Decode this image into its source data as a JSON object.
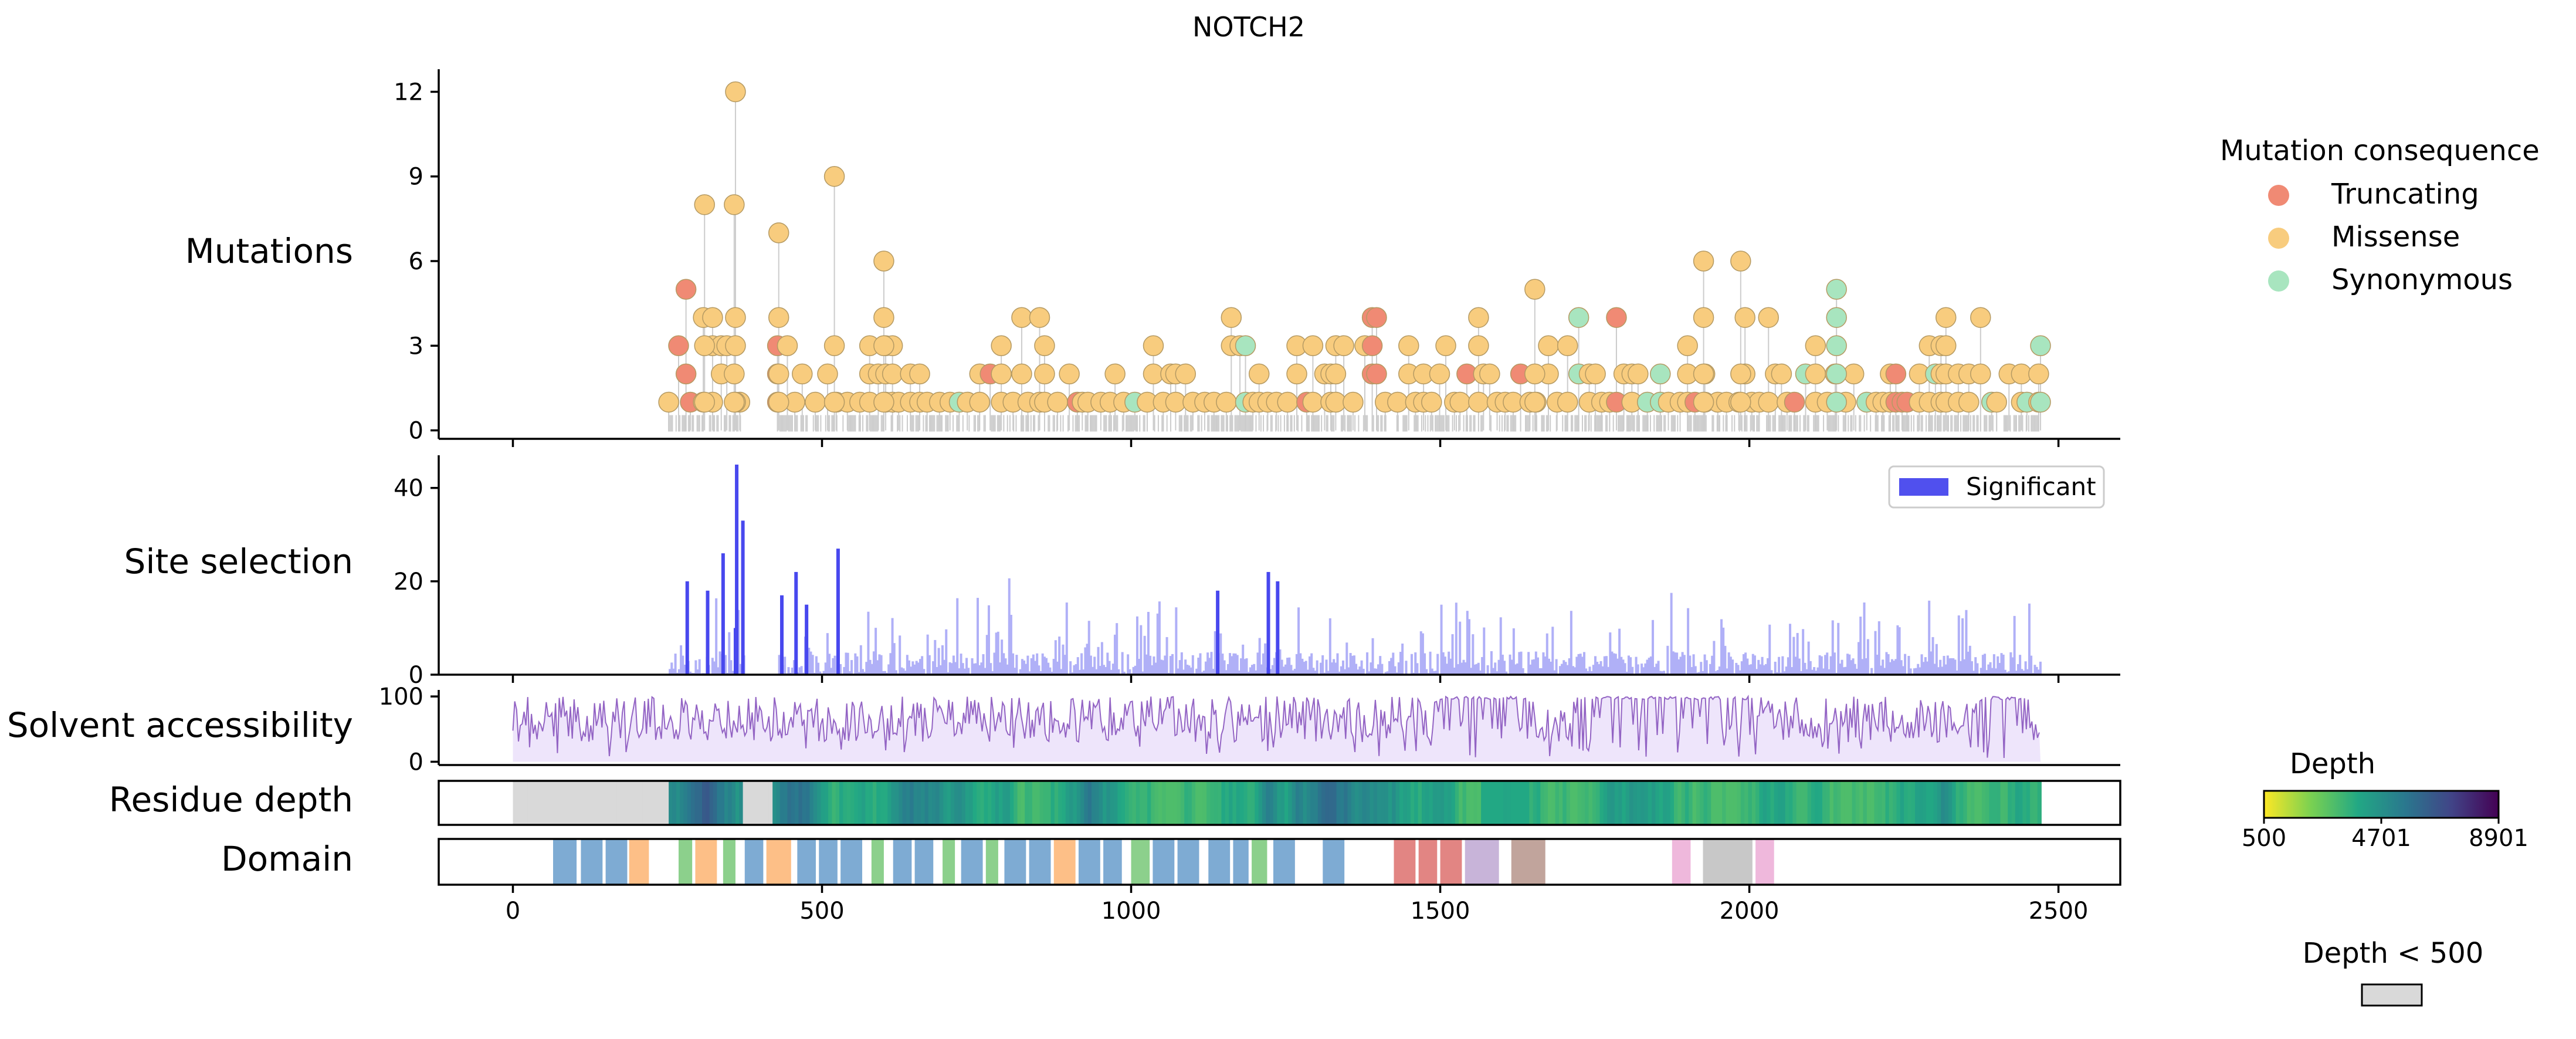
{
  "chart_data": {
    "type": "lollipop",
    "title": "NOTCH2",
    "panels": {
      "mutations": {
        "label": "Mutations",
        "yticks": [
          0,
          3,
          6,
          9,
          12
        ],
        "ylim": [
          -0.3,
          12.8
        ]
      },
      "site_selection": {
        "label": "Site selection",
        "yticks": [
          0,
          20,
          40
        ],
        "ylim": [
          0,
          47
        ]
      },
      "solvent_accessibility": {
        "label": "Solvent accessibility",
        "yticks": [
          0,
          100
        ],
        "ylim": [
          -5,
          110
        ]
      },
      "residue_depth": {
        "label": "Residue depth"
      },
      "domain": {
        "label": "Domain"
      }
    },
    "x_axis": {
      "xlim": [
        -120,
        2600
      ],
      "ticks": [
        0,
        500,
        1000,
        1500,
        2000,
        2500
      ]
    },
    "protein_length": 2471,
    "legend_mutation": {
      "title": "Mutation consequence",
      "entries": [
        {
          "label": "Truncating",
          "color": "#f08a74"
        },
        {
          "label": "Missense",
          "color": "#f8cc7e"
        },
        {
          "label": "Synonymous",
          "color": "#a8e5bf"
        }
      ]
    },
    "legend_selection": {
      "entries": [
        {
          "label": "Significant",
          "color": "#5050ee"
        }
      ]
    },
    "colorbar": {
      "title": "Depth",
      "min": 500,
      "mid": 4701,
      "max": 8901,
      "ticks": [
        "500",
        "4701",
        "8901"
      ]
    },
    "low_depth": {
      "title": "Depth < 500",
      "color": "#d9d9d9"
    },
    "low_depth_regions": [
      [
        0,
        250
      ],
      [
        368,
        420
      ]
    ],
    "notable_mutations": [
      {
        "pos": 280,
        "count": 5,
        "consequence": "Truncating"
      },
      {
        "pos": 360,
        "count": 12,
        "consequence": "Missense"
      },
      {
        "pos": 310,
        "count": 8,
        "consequence": "Missense"
      },
      {
        "pos": 358,
        "count": 8,
        "consequence": "Missense"
      },
      {
        "pos": 430,
        "count": 7,
        "consequence": "Missense"
      },
      {
        "pos": 520,
        "count": 9,
        "consequence": "Missense"
      },
      {
        "pos": 600,
        "count": 6,
        "consequence": "Missense"
      },
      {
        "pos": 1397,
        "count": 4,
        "consequence": "Truncating"
      },
      {
        "pos": 1653,
        "count": 5,
        "consequence": "Missense"
      },
      {
        "pos": 1926,
        "count": 6,
        "consequence": "Missense"
      },
      {
        "pos": 1986,
        "count": 6,
        "consequence": "Missense"
      },
      {
        "pos": 2141,
        "count": 5,
        "consequence": "Synonymous"
      },
      {
        "pos": 2471,
        "count": 3,
        "consequence": "Synonymous"
      }
    ],
    "significant_sites": [
      {
        "pos": 282,
        "value": 20
      },
      {
        "pos": 315,
        "value": 18
      },
      {
        "pos": 340,
        "value": 26
      },
      {
        "pos": 360,
        "value": 10
      },
      {
        "pos": 362,
        "value": 45
      },
      {
        "pos": 372,
        "value": 33
      },
      {
        "pos": 435,
        "value": 17
      },
      {
        "pos": 458,
        "value": 22
      },
      {
        "pos": 475,
        "value": 15
      },
      {
        "pos": 526,
        "value": 27
      },
      {
        "pos": 1140,
        "value": 18
      },
      {
        "pos": 1222,
        "value": 22
      },
      {
        "pos": 1237,
        "value": 20
      }
    ],
    "domains": [
      {
        "start": 65,
        "end": 103,
        "color": "#7eabd3"
      },
      {
        "start": 110,
        "end": 145,
        "color": "#7eabd3"
      },
      {
        "start": 150,
        "end": 185,
        "color": "#7eabd3"
      },
      {
        "start": 188,
        "end": 220,
        "color": "#fdbf87"
      },
      {
        "start": 268,
        "end": 290,
        "color": "#8cd08c"
      },
      {
        "start": 295,
        "end": 330,
        "color": "#fdbf87"
      },
      {
        "start": 340,
        "end": 360,
        "color": "#8cd08c"
      },
      {
        "start": 375,
        "end": 405,
        "color": "#7eabd3"
      },
      {
        "start": 410,
        "end": 450,
        "color": "#fdbf87"
      },
      {
        "start": 460,
        "end": 490,
        "color": "#7eabd3"
      },
      {
        "start": 495,
        "end": 525,
        "color": "#7eabd3"
      },
      {
        "start": 530,
        "end": 565,
        "color": "#7eabd3"
      },
      {
        "start": 580,
        "end": 600,
        "color": "#8cd08c"
      },
      {
        "start": 615,
        "end": 645,
        "color": "#7eabd3"
      },
      {
        "start": 650,
        "end": 680,
        "color": "#7eabd3"
      },
      {
        "start": 695,
        "end": 715,
        "color": "#8cd08c"
      },
      {
        "start": 725,
        "end": 760,
        "color": "#7eabd3"
      },
      {
        "start": 765,
        "end": 785,
        "color": "#8cd08c"
      },
      {
        "start": 795,
        "end": 830,
        "color": "#7eabd3"
      },
      {
        "start": 835,
        "end": 870,
        "color": "#7eabd3"
      },
      {
        "start": 875,
        "end": 910,
        "color": "#fdbf87"
      },
      {
        "start": 915,
        "end": 950,
        "color": "#7eabd3"
      },
      {
        "start": 955,
        "end": 985,
        "color": "#7eabd3"
      },
      {
        "start": 1000,
        "end": 1030,
        "color": "#8cd08c"
      },
      {
        "start": 1035,
        "end": 1070,
        "color": "#7eabd3"
      },
      {
        "start": 1075,
        "end": 1110,
        "color": "#7eabd3"
      },
      {
        "start": 1125,
        "end": 1160,
        "color": "#7eabd3"
      },
      {
        "start": 1165,
        "end": 1190,
        "color": "#7eabd3"
      },
      {
        "start": 1195,
        "end": 1220,
        "color": "#8cd08c"
      },
      {
        "start": 1230,
        "end": 1265,
        "color": "#7eabd3"
      },
      {
        "start": 1310,
        "end": 1345,
        "color": "#7eabd3"
      },
      {
        "start": 1425,
        "end": 1460,
        "color": "#e28583"
      },
      {
        "start": 1465,
        "end": 1495,
        "color": "#e28583"
      },
      {
        "start": 1500,
        "end": 1535,
        "color": "#e28583"
      },
      {
        "start": 1540,
        "end": 1595,
        "color": "#c8b4d9"
      },
      {
        "start": 1615,
        "end": 1670,
        "color": "#c1a49c"
      },
      {
        "start": 1875,
        "end": 1905,
        "color": "#efb8dc"
      },
      {
        "start": 1925,
        "end": 2005,
        "color": "#c8c8c8"
      },
      {
        "start": 2010,
        "end": 2040,
        "color": "#efb8dc"
      }
    ]
  }
}
